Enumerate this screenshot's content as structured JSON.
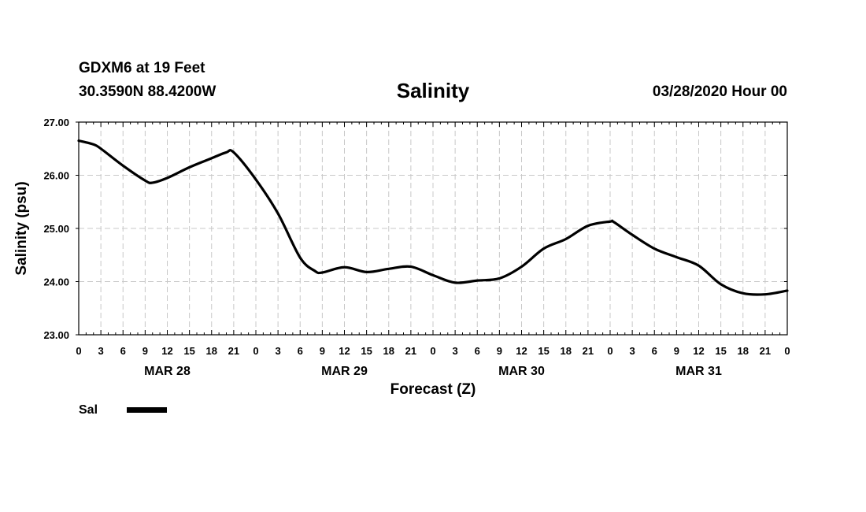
{
  "header": {
    "station": "GDXM6 at 19 Feet",
    "coords": "30.3590N 88.4200W",
    "datetime": "03/28/2020 Hour 00"
  },
  "legend": {
    "label": "Sal"
  },
  "colors": {
    "line": "#000000",
    "grid": "#c8c8c8",
    "axis": "#000000"
  },
  "chart_data": {
    "type": "line",
    "title": "Salinity",
    "xlabel": "Forecast (Z)",
    "ylabel": "Salinity (psu)",
    "xlim": [
      0,
      96
    ],
    "ylim": [
      23,
      27
    ],
    "grid": true,
    "y_ticks": [
      23,
      24,
      25,
      26,
      27
    ],
    "y_tick_labels": [
      "23.00",
      "24.00",
      "25.00",
      "26.00",
      "27.00"
    ],
    "x_ticks": [
      0,
      3,
      6,
      9,
      12,
      15,
      18,
      21,
      24,
      27,
      30,
      33,
      36,
      39,
      42,
      45,
      48,
      51,
      54,
      57,
      60,
      63,
      66,
      69,
      72,
      75,
      78,
      81,
      84,
      87,
      90,
      93,
      96
    ],
    "x_tick_labels": [
      "0",
      "3",
      "6",
      "9",
      "12",
      "15",
      "18",
      "21",
      "0",
      "3",
      "6",
      "9",
      "12",
      "15",
      "18",
      "21",
      "0",
      "3",
      "6",
      "9",
      "12",
      "15",
      "18",
      "21",
      "0",
      "3",
      "6",
      "9",
      "12",
      "15",
      "18",
      "21",
      "0"
    ],
    "day_labels": [
      {
        "label": "MAR 28",
        "x": 12
      },
      {
        "label": "MAR 29",
        "x": 36
      },
      {
        "label": "MAR 30",
        "x": 60
      },
      {
        "label": "MAR 31",
        "x": 84
      }
    ],
    "series": [
      {
        "name": "Sal",
        "x": [
          0,
          2,
          3,
          6,
          9,
          10,
          12,
          15,
          18,
          20,
          21,
          24,
          27,
          30,
          32,
          33,
          36,
          39,
          42,
          45,
          48,
          51,
          54,
          57,
          60,
          63,
          66,
          69,
          72,
          72.5,
          75,
          78,
          81,
          84,
          87,
          90,
          93,
          96
        ],
        "values": [
          26.65,
          26.58,
          26.5,
          26.18,
          25.9,
          25.86,
          25.95,
          26.15,
          26.32,
          26.43,
          26.43,
          25.92,
          25.28,
          24.45,
          24.2,
          24.17,
          24.27,
          24.18,
          24.24,
          24.28,
          24.12,
          23.98,
          24.02,
          24.06,
          24.28,
          24.62,
          24.8,
          25.05,
          25.13,
          25.12,
          24.88,
          24.62,
          24.46,
          24.3,
          23.95,
          23.78,
          23.76,
          23.83
        ]
      }
    ]
  }
}
